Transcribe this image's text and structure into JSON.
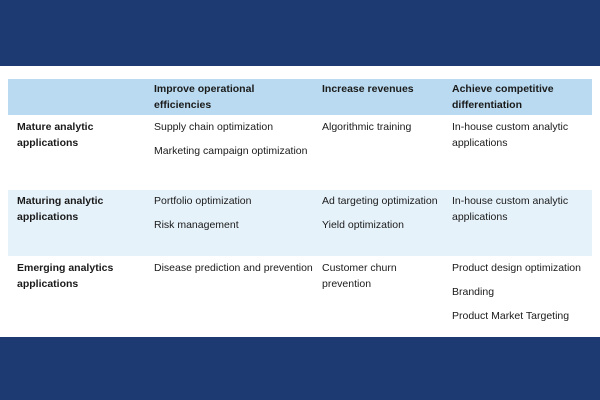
{
  "table": {
    "columns": [
      "",
      "Improve operational efficiencies",
      "Increase revenues",
      "Achieve competitive differentiation"
    ],
    "rows": [
      {
        "label": "Mature analytic applications",
        "operational": [
          "Supply chain optimization",
          "Marketing campaign optimization"
        ],
        "revenues": [
          "Algorithmic training"
        ],
        "differentiation": [
          "In-house custom analytic applications"
        ]
      },
      {
        "label": "Maturing analytic applications",
        "operational": [
          "Portfolio optimization",
          "Risk management"
        ],
        "revenues": [
          "Ad targeting optimization",
          "Yield optimization"
        ],
        "differentiation": [
          "In-house custom analytic applications"
        ]
      },
      {
        "label": "Emerging analytics applications",
        "operational": [
          "Disease prediction and prevention"
        ],
        "revenues": [
          "Customer churn prevention"
        ],
        "differentiation": [
          "Product design optimization",
          "Branding",
          "Product Market Targeting"
        ]
      }
    ]
  },
  "colors": {
    "background_band": "#1e3a73",
    "header_fill": "#b9daf0",
    "alt_row_fill": "#e6f2fa"
  }
}
